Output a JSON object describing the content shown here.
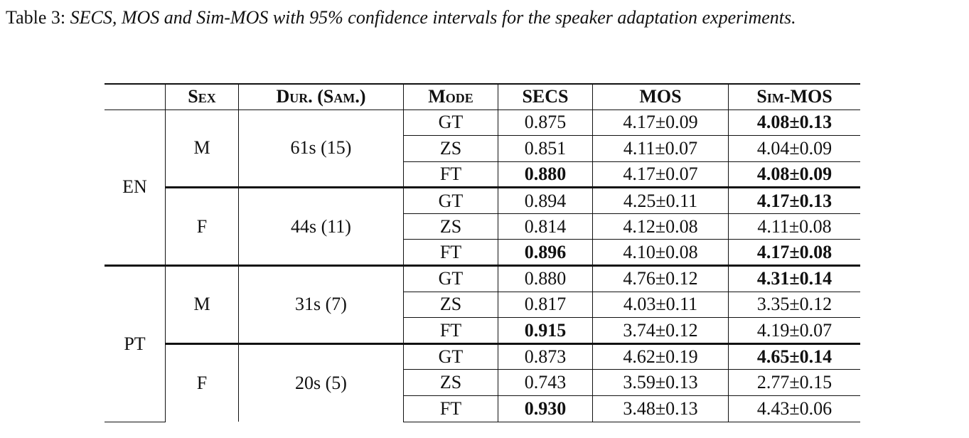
{
  "caption": {
    "label": "Table 3:",
    "text": "SECS, MOS and Sim-MOS with 95% confidence intervals for the speaker adaptation experiments."
  },
  "table": {
    "header": [
      "Sex",
      "Dur. (Sam.)",
      "Mode",
      "SECS",
      "MOS",
      "Sim-MOS"
    ],
    "groups": [
      {
        "language": "EN",
        "speakers": [
          {
            "sex": "M",
            "duration": "61s (15)",
            "rows": [
              [
                "GT",
                "0.875",
                "4.17±0.09",
                "4.08±0.13"
              ],
              [
                "ZS",
                "0.851",
                "4.11±0.07",
                "4.04±0.09"
              ],
              [
                "FT",
                "0.880",
                "4.17±0.07",
                "4.08±0.09"
              ]
            ]
          },
          {
            "sex": "F",
            "duration": "44s (11)",
            "rows": [
              [
                "GT",
                "0.894",
                "4.25±0.11",
                "4.17±0.13"
              ],
              [
                "ZS",
                "0.814",
                "4.12±0.08",
                "4.11±0.08"
              ],
              [
                "FT",
                "0.896",
                "4.10±0.08",
                "4.17±0.08"
              ]
            ]
          }
        ]
      },
      {
        "language": "PT",
        "speakers": [
          {
            "sex": "M",
            "duration": "31s (7)",
            "rows": [
              [
                "GT",
                "0.880",
                "4.76±0.12",
                "4.31±0.14"
              ],
              [
                "ZS",
                "0.817",
                "4.03±0.11",
                "3.35±0.12"
              ],
              [
                "FT",
                "0.915",
                "3.74±0.12",
                "4.19±0.07"
              ]
            ]
          },
          {
            "sex": "F",
            "duration": "20s (5)",
            "rows": [
              [
                "GT",
                "0.873",
                "4.62±0.19",
                "4.65±0.14"
              ],
              [
                "ZS",
                "0.743",
                "3.59±0.13",
                "2.77±0.15"
              ],
              [
                "FT",
                "0.930",
                "3.48±0.13",
                "4.43±0.06"
              ]
            ]
          }
        ]
      }
    ]
  }
}
